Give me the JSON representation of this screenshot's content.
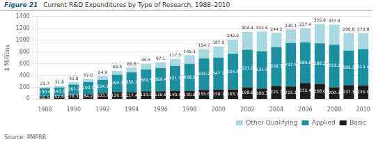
{
  "chart_data": {
    "type": "bar",
    "title": "Current R&D Expenditures by Type of Research, 1988–2010",
    "annotations": [
      "Figure 21",
      "Source: PMPRB"
    ],
    "ylabel": "$ Millions",
    "categories": [
      "1988",
      null,
      "1990",
      null,
      "1992",
      null,
      "1994",
      null,
      "1996",
      null,
      "1998",
      null,
      "2000",
      null,
      "2002",
      null,
      "2004",
      null,
      "2006",
      null,
      "2008",
      null,
      "2010"
    ],
    "series": [
      {
        "name": "Basic",
        "color": "#1c1c1c",
        "values": [
          50.9,
          52.5,
          78.3,
          84.2,
          103.7,
          120.7,
          117.4,
          133.0,
          130.6,
          140.4,
          140.8,
          155.6,
          158.1,
          163.1,
          198.6,
          180.3,
          221.7,
          215.1,
          272.4,
          258.0,
          200.3,
          237.1,
          235.0
        ],
        "value_labels": [
          "50.9",
          "52.5",
          "78.3",
          "84.2",
          "103.7",
          "120.7",
          "117.4",
          "133.0",
          "130.6",
          "140.4",
          "140.8",
          "155.6",
          "158.1",
          "163.1",
          "198.6",
          "180.3",
          "221.7",
          "215.1",
          "272.4",
          "258.0",
          "200.3",
          "237.1",
          "235.0"
        ]
      },
      {
        "name": "Applied",
        "color": "#1a8fa0",
        "values": [
          130.6,
          143.1,
          167.2,
          203.5,
          224.1,
          290.3,
          336.3,
          369.3,
          396.4,
          421.3,
          458.0,
          535.2,
          547.3,
          604.8,
          637.0,
          631.5,
          658.3,
          737.5,
          689.6,
          688.2,
          723.2,
          585.3,
          613.4
        ],
        "value_labels": [
          "130.6",
          "143.1",
          "167.2",
          "203.5",
          "224.1",
          "290.3",
          "336.3",
          "369.3",
          "396.4",
          "421.3",
          "458.0",
          "535.2",
          "547.3",
          "604.8",
          "637.0",
          "631.5",
          "658.3",
          "737.5",
          "689.6",
          "688.2",
          "723.2",
          "585.3",
          "613.4"
        ]
      },
      {
        "name": "Other Qualifying",
        "color": "#a8d8e0",
        "values": [
          21.7,
          31.8,
          42.8,
          57.6,
          64.9,
          68.8,
          80.8,
          96.5,
          97.1,
          117.5,
          145.3,
          154.7,
          187.0,
          242.6,
          304.4,
          332.6,
          244.2,
          230.1,
          237.4,
          326.8,
          337.9,
          296.8,
          270.8
        ],
        "value_labels": [
          "21.7",
          "31.8",
          "42.8",
          "57.6",
          "64.9",
          "68.8",
          "80.8",
          "96.5",
          "97.1",
          "117.5",
          "145.3",
          "154.7",
          "187.0",
          "242.6",
          "304.4",
          "332.6",
          "244.2",
          "230.1",
          "237.4",
          "326.8",
          "337.9",
          "296.8",
          "270.8"
        ]
      }
    ],
    "stacked": true,
    "data_labels": true,
    "ylim": [
      0,
      1400
    ],
    "yticks": [
      0,
      200,
      400,
      600,
      800,
      1000,
      1200,
      1400
    ],
    "grid": true,
    "legend": "lower right"
  }
}
